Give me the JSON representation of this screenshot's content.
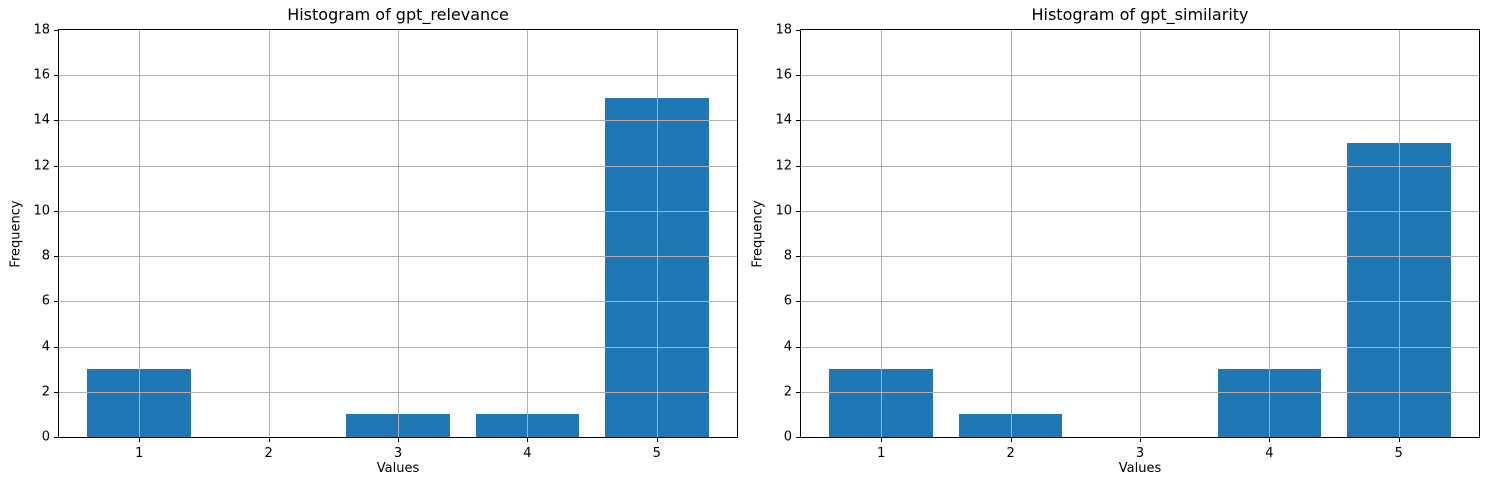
{
  "figure": {
    "background": "#ffffff",
    "text_color": "#000000",
    "spine_color": "#000000"
  },
  "chart_data": [
    {
      "type": "bar",
      "name": "histogram-gpt-relevance",
      "title": "Histogram of gpt_relevance",
      "xlabel": "Values",
      "ylabel": "Frequency",
      "categories": [
        1,
        2,
        3,
        4,
        5
      ],
      "values": [
        3,
        0,
        1,
        1,
        15
      ],
      "xticklabels": [
        "1",
        "2",
        "3",
        "4",
        "5"
      ],
      "yticks": [
        0,
        2,
        4,
        6,
        8,
        10,
        12,
        14,
        16,
        18
      ],
      "yticklabels": [
        "0",
        "2",
        "4",
        "6",
        "8",
        "10",
        "12",
        "14",
        "16",
        "18"
      ],
      "ylim": [
        0,
        18
      ],
      "xlim": [
        0.38,
        5.62
      ],
      "bar_width": 0.8,
      "bar_color": "#1f77b4",
      "grid": true,
      "grid_color": "#b0b0b0",
      "legend": "none"
    },
    {
      "type": "bar",
      "name": "histogram-gpt-similarity",
      "title": "Histogram of gpt_similarity",
      "xlabel": "Values",
      "ylabel": "Frequency",
      "categories": [
        1,
        2,
        3,
        4,
        5
      ],
      "values": [
        3,
        1,
        0,
        3,
        13
      ],
      "xticklabels": [
        "1",
        "2",
        "3",
        "4",
        "5"
      ],
      "yticks": [
        0,
        2,
        4,
        6,
        8,
        10,
        12,
        14,
        16,
        18
      ],
      "yticklabels": [
        "0",
        "2",
        "4",
        "6",
        "8",
        "10",
        "12",
        "14",
        "16",
        "18"
      ],
      "ylim": [
        0,
        18
      ],
      "xlim": [
        0.38,
        5.62
      ],
      "bar_width": 0.8,
      "bar_color": "#1f77b4",
      "grid": true,
      "grid_color": "#b0b0b0",
      "legend": "none"
    }
  ]
}
